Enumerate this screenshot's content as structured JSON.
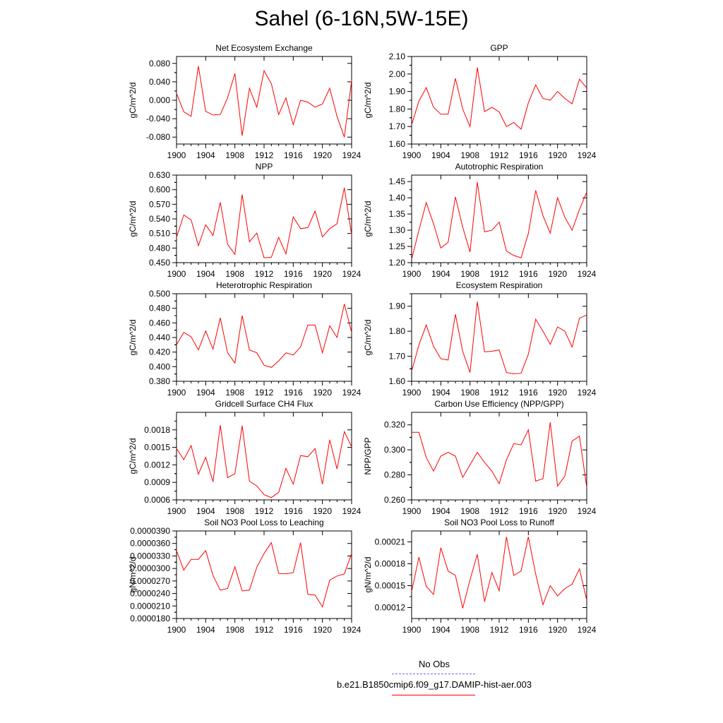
{
  "title": "Sahel (6-16N,5W-15E)",
  "legend": [
    {
      "label": "No Obs",
      "color": "#6666ff",
      "dash": "dashed"
    },
    {
      "label": "b.e21.B1850cmip6.f09_g17.DAMIP-hist-aer.003",
      "color": "#ff0000",
      "dash": "solid"
    }
  ],
  "chart_data": [
    {
      "type": "line",
      "title": "Net Ecosystem Exchange",
      "ylabel": "gC/m^2/d",
      "xlim": [
        1900,
        1924
      ],
      "xticks": [
        "1900",
        "1904",
        "1908",
        "1912",
        "1916",
        "1920",
        "1924"
      ],
      "ylim": [
        -0.095,
        0.095
      ],
      "yticks": [
        "0.080",
        "0.040",
        "0.000",
        "-0.040",
        "-0.080"
      ],
      "ytick_values": [
        0.08,
        0.04,
        0.0,
        -0.04,
        -0.08
      ],
      "series": [
        {
          "color": "#ff0000",
          "x": [
            1900,
            1901,
            1902,
            1903,
            1904,
            1905,
            1906,
            1907,
            1908,
            1909,
            1910,
            1911,
            1912,
            1913,
            1914,
            1915,
            1916,
            1917,
            1918,
            1919,
            1920,
            1921,
            1922,
            1923,
            1924
          ],
          "values": [
            0.015,
            -0.025,
            -0.035,
            0.074,
            -0.024,
            -0.032,
            -0.031,
            0.005,
            0.058,
            -0.077,
            0.026,
            -0.015,
            0.064,
            0.036,
            -0.031,
            0.005,
            -0.053,
            0.0,
            -0.004,
            -0.015,
            -0.008,
            0.026,
            -0.035,
            -0.08,
            0.043
          ]
        }
      ]
    },
    {
      "type": "line",
      "title": "GPP",
      "ylabel": "gC/m^2/d",
      "xlim": [
        1900,
        1924
      ],
      "xticks": [
        "1900",
        "1904",
        "1908",
        "1912",
        "1916",
        "1920",
        "1924"
      ],
      "ylim": [
        1.6,
        2.1
      ],
      "yticks": [
        "2.10",
        "2.00",
        "1.90",
        "1.80",
        "1.70",
        "1.60"
      ],
      "ytick_values": [
        2.1,
        2.0,
        1.9,
        1.8,
        1.7,
        1.6
      ],
      "series": [
        {
          "color": "#ff0000",
          "x": [
            1900,
            1901,
            1902,
            1903,
            1904,
            1905,
            1906,
            1907,
            1908,
            1909,
            1910,
            1911,
            1912,
            1913,
            1914,
            1915,
            1916,
            1917,
            1918,
            1919,
            1920,
            1921,
            1922,
            1923,
            1924
          ],
          "values": [
            1.71,
            1.845,
            1.922,
            1.81,
            1.77,
            1.77,
            1.975,
            1.8,
            1.7,
            2.037,
            1.785,
            1.81,
            1.783,
            1.7,
            1.723,
            1.685,
            1.835,
            1.938,
            1.86,
            1.85,
            1.9,
            1.86,
            1.83,
            1.97,
            1.92
          ]
        }
      ]
    },
    {
      "type": "line",
      "title": "NPP",
      "ylabel": "gC/m^2/d",
      "xlim": [
        1900,
        1924
      ],
      "xticks": [
        "1900",
        "1904",
        "1908",
        "1912",
        "1916",
        "1920",
        "1924"
      ],
      "ylim": [
        0.45,
        0.63
      ],
      "yticks": [
        "0.630",
        "0.600",
        "0.570",
        "0.540",
        "0.510",
        "0.480",
        "0.450"
      ],
      "ytick_values": [
        0.63,
        0.6,
        0.57,
        0.54,
        0.51,
        0.48,
        0.45
      ],
      "series": [
        {
          "color": "#ff0000",
          "x": [
            1900,
            1901,
            1902,
            1903,
            1904,
            1905,
            1906,
            1907,
            1908,
            1909,
            1910,
            1911,
            1912,
            1913,
            1914,
            1915,
            1916,
            1917,
            1918,
            1919,
            1920,
            1921,
            1922,
            1923,
            1924
          ],
          "values": [
            0.502,
            0.548,
            0.538,
            0.485,
            0.528,
            0.506,
            0.574,
            0.488,
            0.467,
            0.59,
            0.493,
            0.511,
            0.46,
            0.461,
            0.502,
            0.468,
            0.544,
            0.52,
            0.522,
            0.556,
            0.503,
            0.52,
            0.53,
            0.604,
            0.507
          ]
        }
      ]
    },
    {
      "type": "line",
      "title": "Autotrophic Respiration",
      "ylabel": "gC/m^2/d",
      "xlim": [
        1900,
        1924
      ],
      "xticks": [
        "1900",
        "1904",
        "1908",
        "1912",
        "1916",
        "1920",
        "1924"
      ],
      "ylim": [
        1.2,
        1.47
      ],
      "yticks": [
        "1.45",
        "1.40",
        "1.35",
        "1.30",
        "1.25",
        "1.20"
      ],
      "ytick_values": [
        1.45,
        1.4,
        1.35,
        1.3,
        1.25,
        1.2
      ],
      "series": [
        {
          "color": "#ff0000",
          "x": [
            1900,
            1901,
            1902,
            1903,
            1904,
            1905,
            1906,
            1907,
            1908,
            1909,
            1910,
            1911,
            1912,
            1913,
            1914,
            1915,
            1916,
            1917,
            1918,
            1919,
            1920,
            1921,
            1922,
            1923,
            1924
          ],
          "values": [
            1.21,
            1.3,
            1.385,
            1.32,
            1.245,
            1.263,
            1.403,
            1.31,
            1.233,
            1.448,
            1.295,
            1.3,
            1.325,
            1.236,
            1.222,
            1.215,
            1.29,
            1.423,
            1.345,
            1.291,
            1.4,
            1.34,
            1.3,
            1.364,
            1.418
          ]
        }
      ]
    },
    {
      "type": "line",
      "title": "Heterotrophic Respiration",
      "ylabel": "gC/m^2/d",
      "xlim": [
        1900,
        1924
      ],
      "xticks": [
        "1900",
        "1904",
        "1908",
        "1912",
        "1916",
        "1920",
        "1924"
      ],
      "ylim": [
        0.38,
        0.5
      ],
      "yticks": [
        "0.500",
        "0.480",
        "0.460",
        "0.440",
        "0.420",
        "0.400",
        "0.380"
      ],
      "ytick_values": [
        0.5,
        0.48,
        0.46,
        0.44,
        0.42,
        0.4,
        0.38
      ],
      "series": [
        {
          "color": "#ff0000",
          "x": [
            1900,
            1901,
            1902,
            1903,
            1904,
            1905,
            1906,
            1907,
            1908,
            1909,
            1910,
            1911,
            1912,
            1913,
            1914,
            1915,
            1916,
            1917,
            1918,
            1919,
            1920,
            1921,
            1922,
            1923,
            1924
          ],
          "values": [
            0.43,
            0.447,
            0.441,
            0.423,
            0.449,
            0.424,
            0.467,
            0.419,
            0.405,
            0.47,
            0.423,
            0.419,
            0.402,
            0.399,
            0.408,
            0.419,
            0.416,
            0.427,
            0.457,
            0.457,
            0.419,
            0.456,
            0.44,
            0.486,
            0.447
          ]
        }
      ]
    },
    {
      "type": "line",
      "title": "Ecosystem Respiration",
      "ylabel": "gC/m^2/d",
      "xlim": [
        1900,
        1924
      ],
      "xticks": [
        "1900",
        "1904",
        "1908",
        "1912",
        "1916",
        "1920",
        "1924"
      ],
      "ylim": [
        1.6,
        1.95
      ],
      "yticks": [
        "1.90",
        "1.80",
        "1.70",
        "1.60"
      ],
      "ytick_values": [
        1.9,
        1.8,
        1.7,
        1.6
      ],
      "series": [
        {
          "color": "#ff0000",
          "x": [
            1900,
            1901,
            1902,
            1903,
            1904,
            1905,
            1906,
            1907,
            1908,
            1909,
            1910,
            1911,
            1912,
            1913,
            1914,
            1915,
            1916,
            1917,
            1918,
            1919,
            1920,
            1921,
            1922,
            1923,
            1924
          ],
          "values": [
            1.64,
            1.745,
            1.825,
            1.74,
            1.69,
            1.685,
            1.868,
            1.72,
            1.635,
            1.918,
            1.718,
            1.72,
            1.725,
            1.635,
            1.63,
            1.632,
            1.708,
            1.848,
            1.8,
            1.748,
            1.817,
            1.8,
            1.737,
            1.852,
            1.865
          ]
        }
      ]
    },
    {
      "type": "line",
      "title": "Gridcell Surface CH4 Flux",
      "ylabel": "gC/m^2/d",
      "xlim": [
        1900,
        1924
      ],
      "xticks": [
        "1900",
        "1904",
        "1908",
        "1912",
        "1916",
        "1920",
        "1924"
      ],
      "ylim": [
        0.0006,
        0.0021
      ],
      "yticks": [
        "0.0018",
        "0.0015",
        "0.0012",
        "0.0009",
        "0.0006"
      ],
      "ytick_values": [
        0.0018,
        0.0015,
        0.0012,
        0.0009,
        0.0006
      ],
      "series": [
        {
          "color": "#ff0000",
          "x": [
            1900,
            1901,
            1902,
            1903,
            1904,
            1905,
            1906,
            1907,
            1908,
            1909,
            1910,
            1911,
            1912,
            1913,
            1914,
            1915,
            1916,
            1917,
            1918,
            1919,
            1920,
            1921,
            1922,
            1923,
            1924
          ],
          "values": [
            0.00148,
            0.00129,
            0.00153,
            0.00104,
            0.00133,
            0.00091,
            0.00188,
            0.00098,
            0.00105,
            0.00187,
            0.00092,
            0.00084,
            0.00069,
            0.00064,
            0.00073,
            0.00114,
            0.00087,
            0.00136,
            0.00134,
            0.00148,
            0.00087,
            0.00163,
            0.00113,
            0.00177,
            0.00151
          ]
        }
      ]
    },
    {
      "type": "line",
      "title": "Carbon Use Efficiency (NPP/GPP)",
      "ylabel": "NPP/GPP",
      "xlim": [
        1900,
        1924
      ],
      "xticks": [
        "1900",
        "1904",
        "1908",
        "1912",
        "1916",
        "1920",
        "1924"
      ],
      "ylim": [
        0.26,
        0.33
      ],
      "yticks": [
        "0.320",
        "0.300",
        "0.280",
        "0.260"
      ],
      "ytick_values": [
        0.32,
        0.3,
        0.28,
        0.26
      ],
      "series": [
        {
          "color": "#ff0000",
          "x": [
            1900,
            1901,
            1902,
            1903,
            1904,
            1905,
            1906,
            1907,
            1908,
            1909,
            1910,
            1911,
            1912,
            1913,
            1914,
            1915,
            1916,
            1917,
            1918,
            1919,
            1920,
            1921,
            1922,
            1923,
            1924
          ],
          "values": [
            0.314,
            0.314,
            0.294,
            0.283,
            0.295,
            0.298,
            0.295,
            0.278,
            0.288,
            0.298,
            0.29,
            0.283,
            0.273,
            0.292,
            0.305,
            0.304,
            0.316,
            0.275,
            0.277,
            0.322,
            0.271,
            0.279,
            0.307,
            0.311,
            0.27
          ]
        }
      ]
    },
    {
      "type": "line",
      "title": "Soil NO3 Pool Loss to Leaching",
      "ylabel": "gN/m^2/d",
      "xlim": [
        1900,
        1924
      ],
      "xticks": [
        "1900",
        "1904",
        "1908",
        "1912",
        "1916",
        "1920",
        "1924"
      ],
      "ylim": [
        1.8e-05,
        3.9e-05
      ],
      "yticks": [
        "0.0000390",
        "0.0000360",
        "0.0000330",
        "0.0000300",
        "0.0000270",
        "0.0000240",
        "0.0000210",
        "0.0000180"
      ],
      "ytick_values": [
        3.9e-05,
        3.6e-05,
        3.3e-05,
        3e-05,
        2.7e-05,
        2.4e-05,
        2.1e-05,
        1.8e-05
      ],
      "series": [
        {
          "color": "#ff0000",
          "x": [
            1900,
            1901,
            1902,
            1903,
            1904,
            1905,
            1906,
            1907,
            1908,
            1909,
            1910,
            1911,
            1912,
            1913,
            1914,
            1915,
            1916,
            1917,
            1918,
            1919,
            1920,
            1921,
            1922,
            1923,
            1924
          ],
          "values": [
            3.43e-05,
            2.96e-05,
            3.22e-05,
            3.22e-05,
            3.43e-05,
            2.83e-05,
            2.48e-05,
            2.52e-05,
            3.04e-05,
            2.46e-05,
            2.48e-05,
            3.03e-05,
            3.36e-05,
            3.62e-05,
            2.88e-05,
            2.87e-05,
            2.9e-05,
            3.62e-05,
            2.38e-05,
            2.36e-05,
            2.08e-05,
            2.72e-05,
            2.82e-05,
            2.87e-05,
            3.36e-05
          ]
        }
      ]
    },
    {
      "type": "line",
      "title": "Soil NO3 Pool Loss to Runoff",
      "ylabel": "gN/m^2/d",
      "xlim": [
        1900,
        1924
      ],
      "xticks": [
        "1900",
        "1904",
        "1908",
        "1912",
        "1916",
        "1920",
        "1924"
      ],
      "ylim": [
        0.000105,
        0.000225
      ],
      "yticks": [
        "0.00021",
        "0.00018",
        "0.00015",
        "0.00012"
      ],
      "ytick_values": [
        0.00021,
        0.00018,
        0.00015,
        0.00012
      ],
      "series": [
        {
          "color": "#ff0000",
          "x": [
            1900,
            1901,
            1902,
            1903,
            1904,
            1905,
            1906,
            1907,
            1908,
            1909,
            1910,
            1911,
            1912,
            1913,
            1914,
            1915,
            1916,
            1917,
            1918,
            1919,
            1920,
            1921,
            1922,
            1923,
            1924
          ],
          "values": [
            0.000142,
            0.000189,
            0.000149,
            0.000138,
            0.000202,
            0.00017,
            0.000164,
            0.000119,
            0.000158,
            0.000193,
            0.000128,
            0.000168,
            0.000143,
            0.000217,
            0.000164,
            0.00017,
            0.000217,
            0.000166,
            0.000124,
            0.00015,
            0.000136,
            0.000146,
            0.000152,
            0.000173,
            0.00013
          ]
        }
      ]
    }
  ]
}
